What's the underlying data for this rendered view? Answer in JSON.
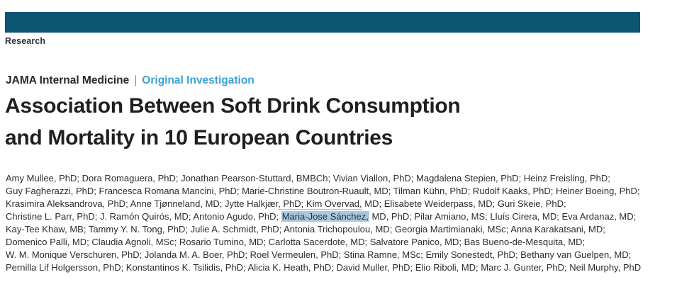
{
  "section_label": "Research",
  "kicker": {
    "journal": "JAMA Internal Medicine",
    "separator": "|",
    "category": "Original Investigation"
  },
  "title": {
    "line1": "Association Between Soft Drink Consumption",
    "line2": "and Mortality in 10 European Countries"
  },
  "authors": {
    "lines": [
      [
        {
          "text": "Amy Mullee, PhD; Dora Romaguera, PhD; Jonathan Pearson-Stuttard, BMBCh; Vivian Viallon, PhD; Magdalena Stepien, PhD; Heinz Freisling, PhD;"
        }
      ],
      [
        {
          "text": "Guy Fagherazzi, PhD; Francesca Romana Mancini, PhD; Marie-Christine Boutron-Ruault, MD; Tilman Kühn, PhD; Rudolf Kaaks, PhD; Heiner Boeing, PhD;"
        }
      ],
      [
        {
          "text": "Krasimira Aleksandrova, PhD; Anne Tjønneland, MD; Jytte Halkjær"
        },
        {
          "text": ", PhD; Kim Overvad,",
          "style": "underline"
        },
        {
          "text": " MD; Elisabete Weiderpass, MD; Guri Skeie, PhD;"
        }
      ],
      [
        {
          "text": "Christine L. Parr, PhD; J. Ramón Quirós, MD; Antonio Agudo, PhD; "
        },
        {
          "text": "Maria-Jose Sánchez,",
          "style": "highlight"
        },
        {
          "text": " MD, PhD; Pilar Amiano, MS; Lluís Cirera, MD; Eva Ardanaz, MD;"
        }
      ],
      [
        {
          "text": "Kay-Tee Khaw, MB; Tammy Y. N. Tong, PhD; Julie A. Schmidt, PhD; Antonia Trichopoulou, MD; Georgia Martimianaki, MSc; Anna Karakatsani, MD;"
        }
      ],
      [
        {
          "text": "Domenico Palli, MD; Claudia Agnoli, MSc; Rosario Tumino, MD; Carlotta Sacerdote, MD; Salvatore Panico, MD; Bas Bueno-de-Mesquita, MD;"
        }
      ],
      [
        {
          "text": "W. M. Monique Verschuren, PhD; Jolanda M. A. Boer, PhD; Roel Vermeulen, PhD; Stina Ramne, MSc; Emily Sonestedt, PhD; Bethany van Guelpen, MD;"
        }
      ],
      [
        {
          "text": "Pernilla Lif Holgersson, PhD; Konstantinos K. Tsilidis, PhD; Alicia K. Heath, PhD; David Muller, PhD; Elio Riboli, MD; Marc J. Gunter, PhD; Neil Murphy, PhD"
        }
      ]
    ]
  },
  "colors": {
    "masthead_bar": "#0b5472",
    "category_accent": "#39a1d8",
    "highlight": "#abc8e3",
    "title_ink": "#1f1f1f",
    "author_ink": "#2d2d2d"
  }
}
